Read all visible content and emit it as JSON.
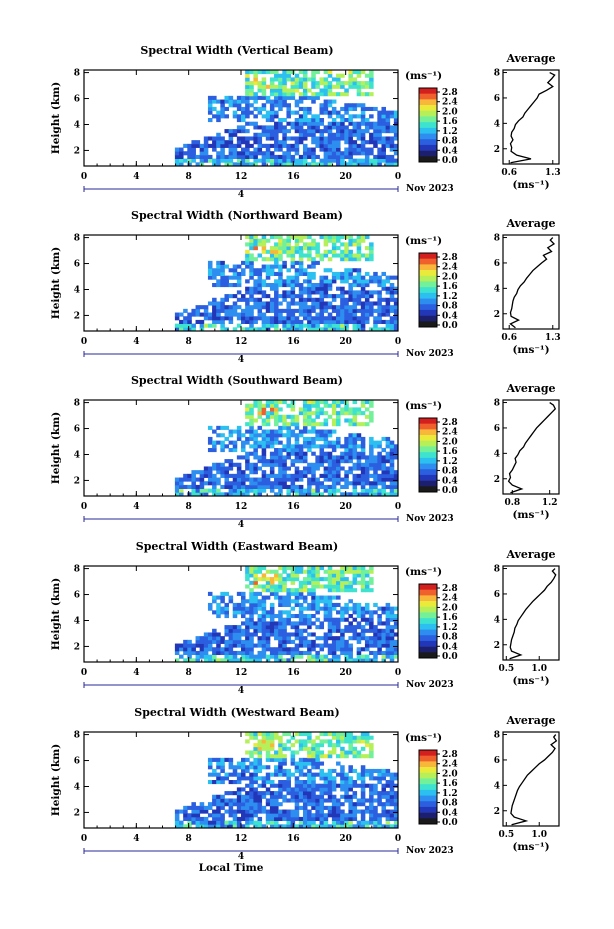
{
  "x_axis_label": "Local Time",
  "date_label": "Nov 2023",
  "day_label": "4",
  "y_axis_label": "Height (km)",
  "unit_label": "(ms⁻¹)",
  "average_title": "Average",
  "colorbar": {
    "ticks": [
      "2.8",
      "2.4",
      "2.0",
      "1.6",
      "1.2",
      "0.8",
      "0.4",
      "0.0"
    ],
    "colors": [
      "#1a1a1a",
      "#1b1f6e",
      "#2236b8",
      "#2b5fe0",
      "#2d8ef0",
      "#2cc0f0",
      "#3de3cf",
      "#73f09a",
      "#b5f05a",
      "#eaea3a",
      "#f8b73a",
      "#f0602c",
      "#d41f1f"
    ]
  },
  "chart_data": [
    {
      "type": "heatmap",
      "title": "Spectral Width (Vertical Beam)",
      "xlabel": "",
      "ylabel": "Height (km)",
      "x_ticks": [
        "0",
        "4",
        "8",
        "12",
        "16",
        "20",
        "0"
      ],
      "y_ticks": [
        "2",
        "4",
        "6",
        "8"
      ],
      "xlim": [
        0,
        24
      ],
      "ylim": [
        0.8,
        8.2
      ],
      "clim": [
        0.0,
        2.8
      ],
      "profile": {
        "title": "Average",
        "xlabel": "(ms⁻¹)",
        "x_ticks": [
          "0.6",
          "1.3"
        ],
        "xlim": [
          0.5,
          1.4
        ],
        "height": [
          0.9,
          1.2,
          1.5,
          1.8,
          2.1,
          2.4,
          2.7,
          3.0,
          3.3,
          3.6,
          3.9,
          4.2,
          4.5,
          4.8,
          5.1,
          5.4,
          5.7,
          6.0,
          6.3,
          6.6,
          6.9,
          7.2,
          7.5,
          7.8,
          8.0
        ],
        "value": [
          0.62,
          0.95,
          0.72,
          0.63,
          0.64,
          0.62,
          0.66,
          0.63,
          0.64,
          0.68,
          0.7,
          0.75,
          0.82,
          0.85,
          0.9,
          0.95,
          1.0,
          1.05,
          1.08,
          1.2,
          1.3,
          1.22,
          1.28,
          1.33,
          1.25
        ]
      }
    },
    {
      "type": "heatmap",
      "title": "Spectral Width (Northward Beam)",
      "xlabel": "",
      "ylabel": "Height (km)",
      "x_ticks": [
        "0",
        "4",
        "8",
        "12",
        "16",
        "20",
        "0"
      ],
      "y_ticks": [
        "2",
        "4",
        "6",
        "8"
      ],
      "xlim": [
        0,
        24
      ],
      "ylim": [
        0.8,
        8.2
      ],
      "clim": [
        0.0,
        2.8
      ],
      "profile": {
        "title": "Average",
        "xlabel": "(ms⁻¹)",
        "x_ticks": [
          "0.6",
          "1.3"
        ],
        "xlim": [
          0.5,
          1.4
        ],
        "height": [
          0.9,
          1.2,
          1.5,
          1.8,
          2.1,
          2.4,
          2.7,
          3.0,
          3.3,
          3.6,
          3.9,
          4.2,
          4.5,
          4.8,
          5.1,
          5.4,
          5.7,
          6.0,
          6.3,
          6.6,
          6.9,
          7.2,
          7.5,
          7.8,
          8.0
        ],
        "value": [
          0.7,
          0.62,
          0.75,
          0.63,
          0.62,
          0.64,
          0.65,
          0.66,
          0.68,
          0.72,
          0.74,
          0.78,
          0.84,
          0.88,
          0.93,
          0.98,
          1.05,
          1.12,
          1.2,
          1.15,
          1.28,
          1.22,
          1.32,
          1.26,
          1.3
        ]
      }
    },
    {
      "type": "heatmap",
      "title": "Spectral Width (Southward Beam)",
      "xlabel": "",
      "ylabel": "Height (km)",
      "x_ticks": [
        "0",
        "4",
        "8",
        "12",
        "16",
        "20",
        "0"
      ],
      "y_ticks": [
        "2",
        "4",
        "6",
        "8"
      ],
      "xlim": [
        0,
        24
      ],
      "ylim": [
        0.8,
        8.2
      ],
      "clim": [
        0.0,
        2.8
      ],
      "profile": {
        "title": "Average",
        "xlabel": "(ms⁻¹)",
        "x_ticks": [
          "0.8",
          "1.2"
        ],
        "xlim": [
          0.7,
          1.3
        ],
        "height": [
          0.9,
          1.2,
          1.5,
          1.8,
          2.1,
          2.4,
          2.7,
          3.0,
          3.3,
          3.6,
          3.9,
          4.2,
          4.5,
          4.8,
          5.1,
          5.4,
          5.7,
          6.0,
          6.3,
          6.6,
          6.9,
          7.2,
          7.5,
          7.8,
          8.0
        ],
        "value": [
          0.78,
          0.9,
          0.8,
          0.76,
          0.78,
          0.77,
          0.8,
          0.82,
          0.84,
          0.83,
          0.86,
          0.88,
          0.92,
          0.94,
          0.97,
          1.0,
          1.03,
          1.06,
          1.1,
          1.14,
          1.18,
          1.22,
          1.26,
          1.24,
          1.2
        ]
      }
    },
    {
      "type": "heatmap",
      "title": "Spectral Width (Eastward Beam)",
      "xlabel": "",
      "ylabel": "Height (km)",
      "x_ticks": [
        "0",
        "4",
        "8",
        "12",
        "16",
        "20",
        "0"
      ],
      "y_ticks": [
        "2",
        "4",
        "6",
        "8"
      ],
      "xlim": [
        0,
        24
      ],
      "ylim": [
        0.8,
        8.2
      ],
      "clim": [
        0.0,
        2.8
      ],
      "profile": {
        "title": "Average",
        "xlabel": "(ms⁻¹)",
        "x_ticks": [
          "0.5",
          "1.0"
        ],
        "xlim": [
          0.45,
          1.3
        ],
        "height": [
          0.9,
          1.2,
          1.5,
          1.8,
          2.1,
          2.4,
          2.7,
          3.0,
          3.3,
          3.6,
          3.9,
          4.2,
          4.5,
          4.8,
          5.1,
          5.4,
          5.7,
          6.0,
          6.3,
          6.6,
          6.9,
          7.2,
          7.5,
          7.8,
          8.0
        ],
        "value": [
          0.55,
          0.72,
          0.58,
          0.56,
          0.57,
          0.58,
          0.6,
          0.62,
          0.63,
          0.66,
          0.68,
          0.72,
          0.76,
          0.8,
          0.85,
          0.9,
          0.96,
          1.02,
          1.08,
          1.12,
          1.18,
          1.22,
          1.25,
          1.2,
          1.24
        ]
      }
    },
    {
      "type": "heatmap",
      "title": "Spectral Width (Westward Beam)",
      "xlabel": "Local Time",
      "ylabel": "Height (km)",
      "x_ticks": [
        "0",
        "4",
        "8",
        "12",
        "16",
        "20",
        "0"
      ],
      "y_ticks": [
        "2",
        "4",
        "6",
        "8"
      ],
      "xlim": [
        0,
        24
      ],
      "ylim": [
        0.8,
        8.2
      ],
      "clim": [
        0.0,
        2.8
      ],
      "profile": {
        "title": "Average",
        "xlabel": "(ms⁻¹)",
        "x_ticks": [
          "0.5",
          "1.0"
        ],
        "xlim": [
          0.45,
          1.3
        ],
        "height": [
          0.9,
          1.2,
          1.5,
          1.8,
          2.1,
          2.4,
          2.7,
          3.0,
          3.3,
          3.6,
          3.9,
          4.2,
          4.5,
          4.8,
          5.1,
          5.4,
          5.7,
          6.0,
          6.3,
          6.6,
          6.9,
          7.2,
          7.5,
          7.8,
          8.0
        ],
        "value": [
          0.58,
          0.8,
          0.62,
          0.57,
          0.58,
          0.59,
          0.61,
          0.63,
          0.65,
          0.67,
          0.7,
          0.74,
          0.78,
          0.82,
          0.88,
          0.94,
          1.0,
          1.08,
          1.14,
          1.2,
          1.24,
          1.18,
          1.26,
          1.22,
          1.25
        ]
      }
    }
  ]
}
